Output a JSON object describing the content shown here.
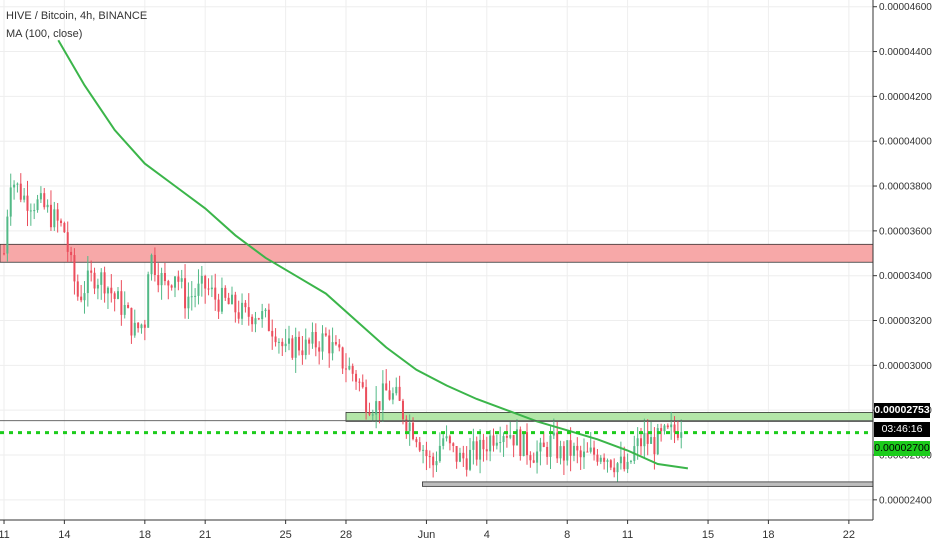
{
  "legend": {
    "title": "HIVE / Bitcoin, 4h, BINANCE",
    "indicator": "MA (100, close)"
  },
  "price_tags": {
    "last_price": "0.00002753",
    "countdown": "03:46:16",
    "level": "0.00002700"
  },
  "colors": {
    "up": "#26a69a",
    "up_candle": "#53b987",
    "down": "#eb4d5c",
    "ma": "#3bb54a",
    "resistance_zone": "#f7a8a8",
    "support_zone": "#b3e6a8",
    "bottom_zone": "#bdbdbd",
    "dotted_level": "#1ccc1c"
  },
  "chart_data": {
    "type": "candlestick",
    "title": "HIVE / Bitcoin, 4h, BINANCE",
    "y_axis": {
      "ylim": [
        2.31e-05,
        4.63e-05
      ],
      "ticks": [
        "0.00002400",
        "0.00002600",
        "0.00002800",
        "0.00003000",
        "0.00003200",
        "0.00003400",
        "0.00003600",
        "0.00003800",
        "0.00004000",
        "0.00004200",
        "0.00004400",
        "0.00004600"
      ],
      "tick_values": [
        2.4e-05,
        2.6e-05,
        2.8e-05,
        3e-05,
        3.2e-05,
        3.4e-05,
        3.6e-05,
        3.8e-05,
        4e-05,
        4.2e-05,
        4.4e-05,
        4.6e-05
      ],
      "position": "right"
    },
    "x_axis": {
      "ticks": [
        "11",
        "14",
        "18",
        "21",
        "25",
        "28",
        "Jun",
        "4",
        "8",
        "11",
        "15",
        "18",
        "22"
      ],
      "tick_days": [
        0,
        3,
        7,
        10,
        14,
        17,
        21,
        24,
        28,
        31,
        35,
        38,
        42
      ],
      "day_range": [
        -0.2,
        43.2
      ]
    },
    "price_path": [
      [
        0,
        3.5e-05
      ],
      [
        0.3,
        3.85e-05
      ],
      [
        0.6,
        3.8e-05
      ],
      [
        1.0,
        3.75e-05
      ],
      [
        1.5,
        3.73e-05
      ],
      [
        2.0,
        3.7e-05
      ],
      [
        2.5,
        3.65e-05
      ],
      [
        3.0,
        3.6e-05
      ],
      [
        3.3,
        3.45e-05
      ],
      [
        3.7,
        3.3e-05
      ],
      [
        4.0,
        3.35e-05
      ],
      [
        4.5,
        3.4e-05
      ],
      [
        5.0,
        3.38e-05
      ],
      [
        5.5,
        3.3e-05
      ],
      [
        6.0,
        3.25e-05
      ],
      [
        6.5,
        3.15e-05
      ],
      [
        7.0,
        3.2e-05
      ],
      [
        7.2,
        3.5e-05
      ],
      [
        7.5,
        3.45e-05
      ],
      [
        8.0,
        3.35e-05
      ],
      [
        8.5,
        3.42e-05
      ],
      [
        9.0,
        3.3e-05
      ],
      [
        9.5,
        3.32e-05
      ],
      [
        10.0,
        3.35e-05
      ],
      [
        10.5,
        3.3e-05
      ],
      [
        11.0,
        3.28e-05
      ],
      [
        11.5,
        3.25e-05
      ],
      [
        12.0,
        3.22e-05
      ],
      [
        12.5,
        3.24e-05
      ],
      [
        13.0,
        3.2e-05
      ],
      [
        13.5,
        3.16e-05
      ],
      [
        14.0,
        3.05e-05
      ],
      [
        14.5,
        3.1e-05
      ],
      [
        15.0,
        3.08e-05
      ],
      [
        15.5,
        3.1e-05
      ],
      [
        16.0,
        3.12e-05
      ],
      [
        16.5,
        3.05e-05
      ],
      [
        17.0,
        3e-05
      ],
      [
        17.5,
        2.95e-05
      ],
      [
        18.0,
        2.85e-05
      ],
      [
        18.5,
        2.82e-05
      ],
      [
        19.0,
        2.88e-05
      ],
      [
        19.5,
        2.85e-05
      ],
      [
        20.0,
        2.76e-05
      ],
      [
        20.5,
        2.7e-05
      ],
      [
        21.0,
        2.6e-05
      ],
      [
        21.3,
        2.55e-05
      ],
      [
        21.8,
        2.68e-05
      ],
      [
        22.2,
        2.62e-05
      ],
      [
        22.7,
        2.58e-05
      ],
      [
        23.2,
        2.6e-05
      ],
      [
        23.7,
        2.62e-05
      ],
      [
        24.2,
        2.68e-05
      ],
      [
        24.7,
        2.72e-05
      ],
      [
        25.2,
        2.7e-05
      ],
      [
        25.7,
        2.65e-05
      ],
      [
        26.2,
        2.62e-05
      ],
      [
        26.7,
        2.6e-05
      ],
      [
        27.2,
        2.66e-05
      ],
      [
        27.7,
        2.6e-05
      ],
      [
        28.2,
        2.62e-05
      ],
      [
        28.7,
        2.58e-05
      ],
      [
        29.2,
        2.6e-05
      ],
      [
        29.7,
        2.62e-05
      ],
      [
        30.2,
        2.58e-05
      ],
      [
        30.7,
        2.55e-05
      ],
      [
        31.0,
        2.52e-05
      ],
      [
        31.3,
        2.62e-05
      ],
      [
        31.8,
        2.67e-05
      ],
      [
        32.3,
        2.65e-05
      ],
      [
        32.8,
        2.68e-05
      ],
      [
        33.3,
        2.7e-05
      ],
      [
        33.7,
        2.75e-05
      ]
    ],
    "ma_100": [
      [
        2.7,
        4.45e-05
      ],
      [
        4.0,
        4.25e-05
      ],
      [
        5.5,
        4.05e-05
      ],
      [
        7.0,
        3.9e-05
      ],
      [
        8.5,
        3.8e-05
      ],
      [
        10.0,
        3.7e-05
      ],
      [
        11.5,
        3.58e-05
      ],
      [
        13.0,
        3.48e-05
      ],
      [
        14.5,
        3.4e-05
      ],
      [
        16.0,
        3.32e-05
      ],
      [
        17.5,
        3.2e-05
      ],
      [
        19.0,
        3.08e-05
      ],
      [
        20.5,
        2.98e-05
      ],
      [
        22.0,
        2.91e-05
      ],
      [
        23.5,
        2.85e-05
      ],
      [
        25.0,
        2.8e-05
      ],
      [
        26.5,
        2.75e-05
      ],
      [
        28.0,
        2.71e-05
      ],
      [
        29.5,
        2.67e-05
      ],
      [
        31.0,
        2.62e-05
      ],
      [
        32.5,
        2.56e-05
      ],
      [
        34.0,
        2.54e-05
      ]
    ],
    "zones": [
      {
        "x0": -0.2,
        "x1": 43.2,
        "y0": 3.46e-05,
        "y1": 3.54e-05
      },
      {
        "x0": 17.0,
        "x1": 43.2,
        "y0": 2.75e-05,
        "y1": 2.79e-05
      },
      {
        "x0": 20.8,
        "x1": 43.2,
        "y0": 2.46e-05,
        "y1": 2.48e-05
      }
    ],
    "levels": {
      "last_price": 2.753e-05,
      "dotted": 2.7e-05
    }
  }
}
